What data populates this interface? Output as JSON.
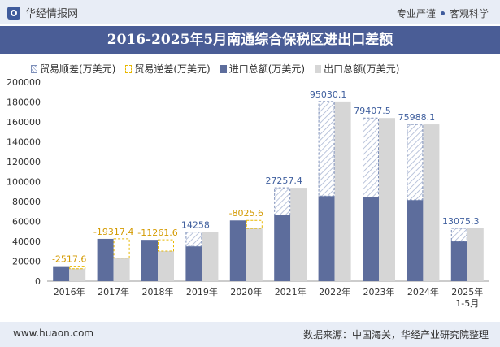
{
  "header": {
    "brand": "华经情报网",
    "tagline_left": "专业严谨",
    "tagline_right": "客观科学",
    "title": "2016-2025年5月南通综合保税区进出口差额"
  },
  "legend": {
    "surplus": "贸易顺差(万美元)",
    "deficit": "贸易逆差(万美元)",
    "import": "进口总额(万美元)",
    "export": "出口总额(万美元)"
  },
  "footer": {
    "website": "www.huaon.com",
    "source": "数据来源：中国海关，华经产业研究院整理"
  },
  "colors": {
    "import": "#5d6d9c",
    "export": "#d6d6d6",
    "surplus_label": "#3f5f9e",
    "deficit_label": "#d49a00",
    "band": "#4a5d96"
  },
  "chart_data": {
    "type": "bar",
    "categories": [
      "2016年",
      "2017年",
      "2018年",
      "2019年",
      "2020年",
      "2021年",
      "2022年",
      "2023年",
      "2024年",
      "2025年\n1-5月"
    ],
    "series": [
      {
        "name": "进口总额(万美元)",
        "values": [
          15000,
          42500,
          41500,
          35000,
          61000,
          66500,
          85500,
          84500,
          81500,
          40000
        ]
      },
      {
        "name": "出口总额(万美元)",
        "values": [
          12500,
          23200,
          30200,
          49300,
          53000,
          93800,
          180500,
          163900,
          157500,
          53100
        ]
      }
    ],
    "balance": {
      "values": [
        -2517.6,
        -19317.4,
        -11261.6,
        14258,
        -8025.6,
        27257.4,
        95030.1,
        79407.5,
        75988.1,
        13075.3
      ],
      "labels": [
        "-2517.6",
        "-19317.4",
        "-11261.6",
        "14258",
        "-8025.6",
        "27257.4",
        "95030.1",
        "79407.5",
        "75988.1",
        "13075.3"
      ]
    },
    "ylim": [
      0,
      200000
    ],
    "yticks": [
      0,
      20000,
      40000,
      60000,
      80000,
      100000,
      120000,
      140000,
      160000,
      180000,
      200000
    ],
    "xlabel": "",
    "ylabel": "",
    "legend_position": "top"
  }
}
